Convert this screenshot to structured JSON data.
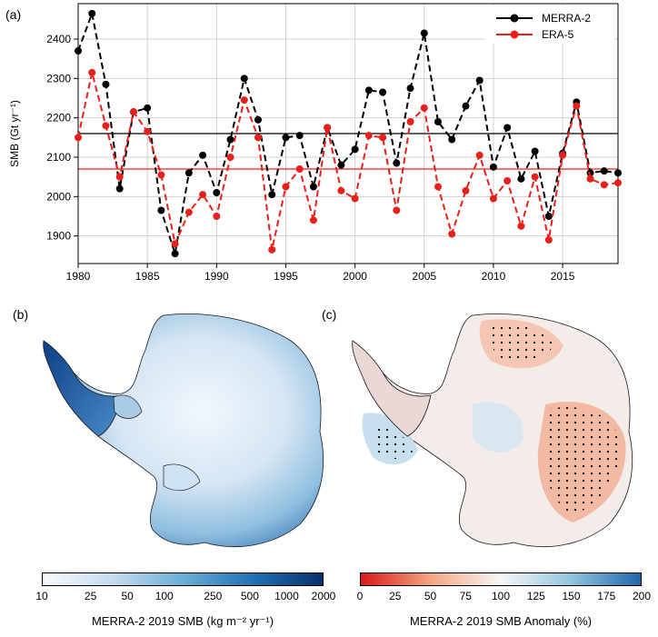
{
  "panels": {
    "a": "(a)",
    "b": "(b)",
    "c": "(c)"
  },
  "chart_data": {
    "type": "line",
    "ylabel": "SMB (Gt yr⁻¹)",
    "xlim": [
      1980,
      2019
    ],
    "ylim": [
      1830,
      2490
    ],
    "xticks": [
      1980,
      1985,
      1990,
      1995,
      2000,
      2005,
      2010,
      2015
    ],
    "yticks": [
      1900,
      2000,
      2100,
      2200,
      2300,
      2400
    ],
    "grid": true,
    "legend_position": "top-right",
    "x": [
      1980,
      1981,
      1982,
      1983,
      1984,
      1985,
      1986,
      1987,
      1988,
      1989,
      1990,
      1991,
      1992,
      1993,
      1994,
      1995,
      1996,
      1997,
      1998,
      1999,
      2000,
      2001,
      2002,
      2003,
      2004,
      2005,
      2006,
      2007,
      2008,
      2009,
      2010,
      2011,
      2012,
      2013,
      2014,
      2015,
      2016,
      2017,
      2018,
      2019
    ],
    "series": [
      {
        "name": "MERRA-2",
        "color": "#000000",
        "values": [
          2370,
          2465,
          2285,
          2020,
          2215,
          2225,
          1965,
          1855,
          2060,
          2105,
          2010,
          2145,
          2300,
          2195,
          2005,
          2150,
          2155,
          2025,
          2175,
          2080,
          2120,
          2270,
          2265,
          2085,
          2275,
          2415,
          2190,
          2145,
          2230,
          2295,
          2075,
          2175,
          2045,
          2115,
          1950,
          2110,
          2240,
          2060,
          2065,
          2060
        ]
      },
      {
        "name": "ERA-5",
        "color": "#e8201a",
        "values": [
          2150,
          2315,
          2180,
          2050,
          2215,
          2165,
          2055,
          1880,
          1960,
          2005,
          1950,
          2100,
          2245,
          2150,
          1865,
          2025,
          2070,
          1940,
          2175,
          2015,
          1995,
          2155,
          2150,
          1965,
          2190,
          2225,
          2025,
          1905,
          2015,
          2105,
          1995,
          2040,
          1925,
          2050,
          1890,
          2105,
          2230,
          2045,
          2030,
          2035
        ]
      }
    ],
    "mean_lines": [
      {
        "series": "MERRA-2",
        "value": 2160,
        "color": "#000000"
      },
      {
        "series": "ERA-5",
        "value": 2070,
        "color": "#e8201a"
      }
    ]
  },
  "colorbar_b": {
    "label": "MERRA-2 2019 SMB (kg m⁻² yr⁻¹)",
    "ticks": [
      "10",
      "25",
      "50",
      "100",
      "250",
      "500",
      "1000",
      "2000"
    ],
    "scale": "log",
    "colors": [
      "#f7fbff",
      "#c6dbef",
      "#6baed6",
      "#2171b5",
      "#08306b"
    ]
  },
  "colorbar_c": {
    "label": "MERRA-2 2019 SMB Anomaly (%)",
    "ticks": [
      "0",
      "25",
      "50",
      "75",
      "100",
      "125",
      "150",
      "175",
      "200"
    ],
    "colors": [
      "#d7191c",
      "#f4a582",
      "#f7f7f7",
      "#92c5de",
      "#2166ac"
    ]
  }
}
